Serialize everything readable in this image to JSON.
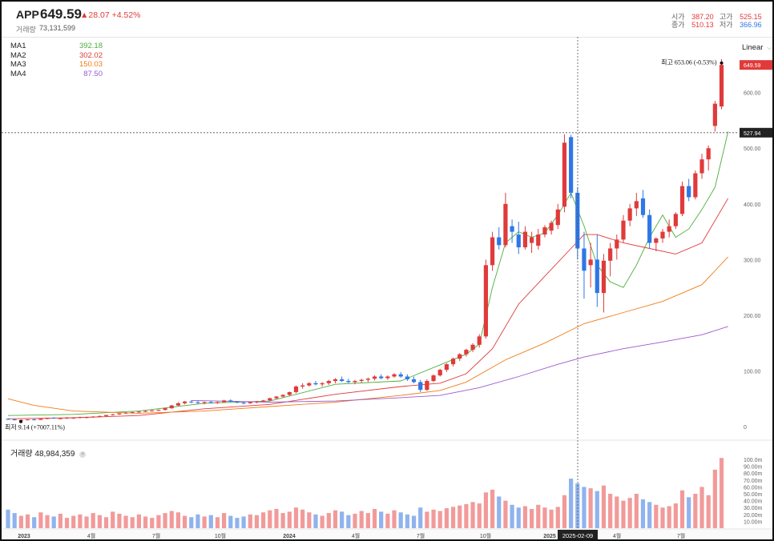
{
  "header": {
    "ticker": "APP",
    "price": "649.59",
    "change": "▲28.07 +4.52%",
    "volume_label": "거래량",
    "volume_value": "73,131,599",
    "stats": [
      {
        "label": "시가",
        "value": "387.20",
        "color": "red"
      },
      {
        "label": "고가",
        "value": "525.15",
        "color": "red"
      },
      {
        "label": "종가",
        "value": "510.13",
        "color": "red"
      },
      {
        "label": "저가",
        "value": "366.96",
        "color": "blue"
      }
    ]
  },
  "ma_legend": [
    {
      "name": "MA1",
      "value": "392.18",
      "color": "#4cae3b"
    },
    {
      "name": "MA2",
      "value": "302.02",
      "color": "#e03a3a"
    },
    {
      "name": "MA3",
      "value": "150.03",
      "color": "#f07d1a"
    },
    {
      "name": "MA4",
      "value": "87.50",
      "color": "#9b59d0"
    }
  ],
  "scale_mode": "Linear",
  "volume_panel": {
    "label": "거래량 48,984,359",
    "close_icon": "×"
  },
  "chart_data": {
    "type": "candlestick",
    "price_axis": {
      "ticks": [
        0,
        100,
        200,
        300,
        400,
        500,
        600
      ],
      "tick_labels": [
        "0",
        "100.00",
        "200.00",
        "300.00",
        "400.00",
        "500.00",
        "600.00"
      ],
      "range": [
        -20,
        680
      ]
    },
    "volume_axis": {
      "unit": "m",
      "tick_labels": [
        "10.00m",
        "20.00m",
        "30.00m",
        "40.00m",
        "50.00m",
        "60.00m",
        "70.00m",
        "80.00m",
        "90.00m",
        "100.0m"
      ]
    },
    "x_labels": [
      "2023",
      "4월",
      "7월",
      "10월",
      "2024",
      "4월",
      "7월",
      "10월",
      "2025",
      "4월",
      "7월"
    ],
    "current_price_label": "649.59",
    "crosshair_price_label": "527.94",
    "crosshair_price": 527.94,
    "crosshair_date_label": "2025-02-09",
    "annotations": [
      {
        "text": "최고 653.06 (-0.53%)",
        "price": 653.06
      },
      {
        "text": "최저 9.14 (+7007.11%)",
        "price": 9.14
      }
    ],
    "colors": {
      "up": "#e03a3a",
      "down": "#2e77e6",
      "vol_up": "#f29a9a",
      "vol_down": "#8fb3ee"
    },
    "weekly_ohlc": [
      [
        14,
        15,
        12,
        13
      ],
      [
        13,
        14,
        11,
        12
      ],
      [
        12,
        13,
        10,
        12
      ],
      [
        12,
        13,
        11,
        13
      ],
      [
        13,
        14,
        11,
        12
      ],
      [
        12,
        15,
        12,
        14
      ],
      [
        14,
        16,
        13,
        16
      ],
      [
        16,
        17,
        14,
        15
      ],
      [
        15,
        16,
        13,
        15
      ],
      [
        15,
        17,
        14,
        16
      ],
      [
        16,
        17,
        14,
        16
      ],
      [
        16,
        18,
        15,
        17
      ],
      [
        17,
        18,
        15,
        17
      ],
      [
        17,
        19,
        16,
        18
      ],
      [
        18,
        20,
        17,
        19
      ],
      [
        19,
        21,
        18,
        21
      ],
      [
        21,
        23,
        20,
        22
      ],
      [
        22,
        24,
        21,
        24
      ],
      [
        24,
        26,
        23,
        25
      ],
      [
        25,
        27,
        24,
        26
      ],
      [
        26,
        28,
        24,
        27
      ],
      [
        27,
        29,
        26,
        28
      ],
      [
        28,
        30,
        27,
        29
      ],
      [
        29,
        31,
        28,
        30
      ],
      [
        30,
        34,
        29,
        33
      ],
      [
        33,
        39,
        32,
        38
      ],
      [
        38,
        44,
        37,
        42
      ],
      [
        42,
        46,
        40,
        45
      ],
      [
        45,
        47,
        42,
        44
      ],
      [
        44,
        46,
        41,
        43
      ],
      [
        43,
        45,
        40,
        44
      ],
      [
        44,
        46,
        42,
        43
      ],
      [
        43,
        45,
        41,
        44
      ],
      [
        44,
        48,
        43,
        47
      ],
      [
        47,
        49,
        44,
        45
      ],
      [
        45,
        46,
        42,
        43
      ],
      [
        43,
        44,
        40,
        42
      ],
      [
        42,
        45,
        41,
        44
      ],
      [
        44,
        46,
        42,
        45
      ],
      [
        45,
        48,
        44,
        47
      ],
      [
        47,
        52,
        46,
        51
      ],
      [
        51,
        55,
        49,
        54
      ],
      [
        54,
        58,
        52,
        57
      ],
      [
        57,
        63,
        55,
        62
      ],
      [
        62,
        74,
        60,
        72
      ],
      [
        72,
        78,
        68,
        74
      ],
      [
        74,
        80,
        72,
        78
      ],
      [
        78,
        82,
        74,
        76
      ],
      [
        76,
        80,
        72,
        78
      ],
      [
        78,
        84,
        75,
        82
      ],
      [
        82,
        87,
        78,
        85
      ],
      [
        85,
        90,
        80,
        82
      ],
      [
        82,
        86,
        78,
        80
      ],
      [
        80,
        84,
        76,
        82
      ],
      [
        82,
        86,
        79,
        84
      ],
      [
        84,
        88,
        80,
        86
      ],
      [
        86,
        92,
        83,
        90
      ],
      [
        90,
        94,
        85,
        87
      ],
      [
        87,
        92,
        84,
        90
      ],
      [
        90,
        96,
        88,
        94
      ],
      [
        94,
        98,
        88,
        90
      ],
      [
        90,
        94,
        82,
        85
      ],
      [
        85,
        90,
        78,
        80
      ],
      [
        80,
        84,
        62,
        66
      ],
      [
        66,
        85,
        64,
        82
      ],
      [
        82,
        94,
        80,
        92
      ],
      [
        92,
        104,
        90,
        102
      ],
      [
        102,
        114,
        98,
        112
      ],
      [
        112,
        124,
        108,
        122
      ],
      [
        122,
        132,
        118,
        130
      ],
      [
        130,
        140,
        126,
        138
      ],
      [
        138,
        150,
        134,
        147
      ],
      [
        147,
        166,
        142,
        162
      ],
      [
        162,
        300,
        158,
        290
      ],
      [
        290,
        350,
        280,
        340
      ],
      [
        340,
        358,
        318,
        326
      ],
      [
        326,
        420,
        322,
        400
      ],
      [
        360,
        372,
        330,
        350
      ],
      [
        345,
        368,
        310,
        322
      ],
      [
        322,
        360,
        318,
        350
      ],
      [
        330,
        350,
        312,
        340
      ],
      [
        325,
        355,
        318,
        345
      ],
      [
        345,
        362,
        340,
        358
      ],
      [
        352,
        370,
        345,
        366
      ],
      [
        362,
        400,
        355,
        390
      ],
      [
        395,
        525,
        385,
        510
      ],
      [
        520,
        524,
        410,
        420
      ],
      [
        420,
        430,
        300,
        320
      ],
      [
        320,
        350,
        230,
        280
      ],
      [
        290,
        330,
        250,
        300
      ],
      [
        300,
        345,
        215,
        240
      ],
      [
        240,
        310,
        205,
        298
      ],
      [
        298,
        330,
        270,
        320
      ],
      [
        320,
        345,
        300,
        336
      ],
      [
        336,
        380,
        330,
        370
      ],
      [
        370,
        400,
        360,
        392
      ],
      [
        392,
        420,
        378,
        405
      ],
      [
        410,
        425,
        375,
        380
      ],
      [
        380,
        390,
        320,
        330
      ],
      [
        330,
        340,
        315,
        338
      ],
      [
        338,
        355,
        330,
        350
      ],
      [
        350,
        372,
        340,
        360
      ],
      [
        360,
        385,
        355,
        382
      ],
      [
        382,
        440,
        378,
        432
      ],
      [
        432,
        445,
        405,
        412
      ],
      [
        412,
        460,
        408,
        455
      ],
      [
        455,
        490,
        445,
        480
      ],
      [
        480,
        505,
        460,
        500
      ],
      [
        540,
        585,
        530,
        580
      ],
      [
        575,
        660,
        570,
        649.59
      ]
    ],
    "weekly_volume_m": [
      27,
      22,
      18,
      20,
      16,
      23,
      19,
      17,
      21,
      15,
      18,
      20,
      17,
      22,
      19,
      16,
      24,
      21,
      18,
      16,
      20,
      17,
      15,
      19,
      22,
      25,
      23,
      18,
      16,
      20,
      17,
      19,
      16,
      22,
      18,
      15,
      17,
      20,
      19,
      23,
      26,
      28,
      22,
      24,
      30,
      27,
      23,
      20,
      18,
      22,
      26,
      24,
      19,
      21,
      25,
      22,
      28,
      24,
      21,
      26,
      23,
      20,
      18,
      30,
      24,
      27,
      25,
      29,
      31,
      33,
      35,
      38,
      36,
      52,
      56,
      46,
      40,
      34,
      30,
      32,
      28,
      34,
      30,
      27,
      31,
      48,
      72,
      65,
      60,
      58,
      54,
      62,
      50,
      46,
      40,
      44,
      50,
      42,
      38,
      34,
      30,
      32,
      36,
      55,
      45,
      50,
      60,
      48,
      85,
      102
    ],
    "ma_series": [
      {
        "name": "MA1",
        "color": "#4cae3b",
        "points": [
          [
            0,
            20
          ],
          [
            10,
            22
          ],
          [
            20,
            28
          ],
          [
            30,
            42
          ],
          [
            40,
            46
          ],
          [
            50,
            76
          ],
          [
            60,
            82
          ],
          [
            70,
            130
          ],
          [
            72,
            148
          ],
          [
            74,
            250
          ],
          [
            76,
            330
          ],
          [
            78,
            350
          ],
          [
            80,
            340
          ],
          [
            82,
            348
          ],
          [
            84,
            380
          ],
          [
            86,
            420
          ],
          [
            88,
            360
          ],
          [
            90,
            290
          ],
          [
            92,
            260
          ],
          [
            94,
            250
          ],
          [
            96,
            290
          ],
          [
            98,
            340
          ],
          [
            100,
            380
          ],
          [
            102,
            340
          ],
          [
            104,
            355
          ],
          [
            106,
            390
          ],
          [
            108,
            430
          ],
          [
            110,
            530
          ]
        ]
      },
      {
        "name": "MA2",
        "color": "#e03a3a",
        "points": [
          [
            0,
            14
          ],
          [
            10,
            16
          ],
          [
            20,
            20
          ],
          [
            30,
            32
          ],
          [
            40,
            40
          ],
          [
            50,
            58
          ],
          [
            60,
            72
          ],
          [
            66,
            78
          ],
          [
            70,
            95
          ],
          [
            74,
            140
          ],
          [
            78,
            220
          ],
          [
            82,
            270
          ],
          [
            86,
            320
          ],
          [
            88,
            345
          ],
          [
            90,
            345
          ],
          [
            94,
            330
          ],
          [
            98,
            320
          ],
          [
            102,
            310
          ],
          [
            106,
            330
          ],
          [
            110,
            410
          ]
        ]
      },
      {
        "name": "MA3",
        "color": "#f07d1a",
        "points": [
          [
            0,
            50
          ],
          [
            4,
            38
          ],
          [
            10,
            28
          ],
          [
            20,
            24
          ],
          [
            30,
            28
          ],
          [
            40,
            36
          ],
          [
            50,
            44
          ],
          [
            60,
            56
          ],
          [
            66,
            65
          ],
          [
            70,
            80
          ],
          [
            76,
            120
          ],
          [
            82,
            150
          ],
          [
            88,
            185
          ],
          [
            94,
            205
          ],
          [
            100,
            225
          ],
          [
            106,
            255
          ],
          [
            110,
            305
          ]
        ]
      },
      {
        "name": "MA4",
        "color": "#9b59d0",
        "points": [
          [
            28,
            47
          ],
          [
            40,
            44
          ],
          [
            50,
            46
          ],
          [
            60,
            52
          ],
          [
            66,
            56
          ],
          [
            72,
            70
          ],
          [
            78,
            90
          ],
          [
            84,
            112
          ],
          [
            88,
            125
          ],
          [
            94,
            140
          ],
          [
            100,
            152
          ],
          [
            106,
            165
          ],
          [
            110,
            180
          ]
        ]
      }
    ]
  }
}
